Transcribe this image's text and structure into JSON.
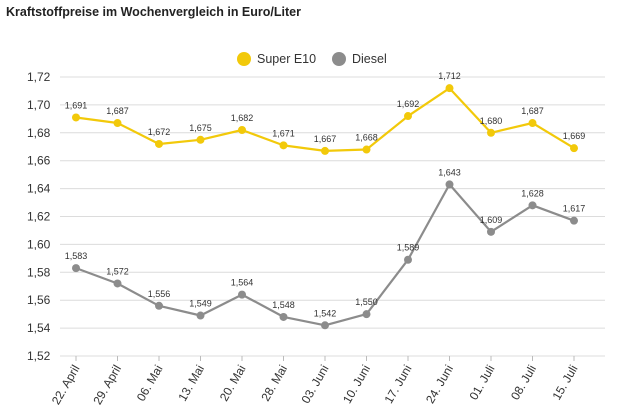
{
  "chart_data": {
    "type": "line",
    "title": "Kraftstoffpreise im Wochenvergleich in Euro/Liter",
    "categories": [
      "22. April",
      "29. April",
      "06. Mai",
      "13. Mai",
      "20. Mai",
      "28. Mai",
      "03. Juni",
      "10. Juni",
      "17. Juni",
      "24. Juni",
      "01. Juli",
      "08. Juli",
      "15. Juli"
    ],
    "series": [
      {
        "name": "Super E10",
        "color": "#f2c90a",
        "values": [
          1.691,
          1.687,
          1.672,
          1.675,
          1.682,
          1.671,
          1.667,
          1.668,
          1.692,
          1.712,
          1.68,
          1.687,
          1.669
        ],
        "labels": [
          "1,691",
          "1,687",
          "1,672",
          "1,675",
          "1,682",
          "1,671",
          "1,667",
          "1,668",
          "1,692",
          "1,712",
          "1,680",
          "1,687",
          "1,669"
        ]
      },
      {
        "name": "Diesel",
        "color": "#8c8c8c",
        "values": [
          1.583,
          1.572,
          1.556,
          1.549,
          1.564,
          1.548,
          1.542,
          1.55,
          1.589,
          1.643,
          1.609,
          1.628,
          1.617
        ],
        "labels": [
          "1,583",
          "1,572",
          "1,556",
          "1,549",
          "1,564",
          "1,548",
          "1,542",
          "1,550",
          "1,589",
          "1,643",
          "1,609",
          "1,628",
          "1,617"
        ]
      }
    ],
    "ylim": [
      1.52,
      1.72
    ],
    "yticks": [
      1.52,
      1.54,
      1.56,
      1.58,
      1.6,
      1.62,
      1.64,
      1.66,
      1.68,
      1.7,
      1.72
    ],
    "ytick_labels": [
      "1,52",
      "1,54",
      "1,56",
      "1,58",
      "1,60",
      "1,62",
      "1,64",
      "1,66",
      "1,68",
      "1,70",
      "1,72"
    ],
    "grid": true,
    "legend_position": "top-center",
    "xlabel": "",
    "ylabel": ""
  }
}
